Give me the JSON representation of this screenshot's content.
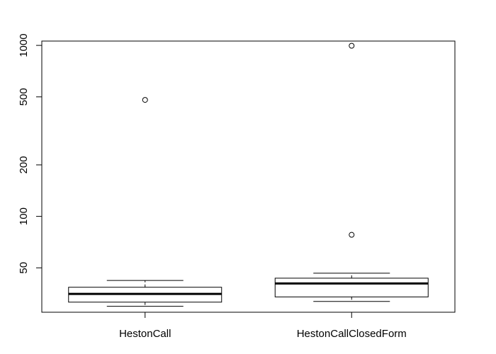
{
  "chart_data": {
    "type": "boxplot",
    "scale": "log",
    "title": "",
    "xlabel": "",
    "ylabel": "",
    "categories": [
      "HestonCall",
      "HestonCallClosedForm"
    ],
    "yticks": [
      50,
      100,
      200,
      500,
      1000
    ],
    "ylim": [
      27.5,
      1060
    ],
    "grid": false,
    "boxes": [
      {
        "name": "HestonCall",
        "whisker_low": 29.8,
        "q1": 31.5,
        "median": 35.2,
        "q3": 38.5,
        "whisker_high": 42.2,
        "outliers": [
          480
        ]
      },
      {
        "name": "HestonCallClosedForm",
        "whisker_low": 31.8,
        "q1": 33.8,
        "median": 40.5,
        "q3": 43.5,
        "whisker_high": 46.5,
        "outliers": [
          78,
          995
        ]
      }
    ]
  }
}
